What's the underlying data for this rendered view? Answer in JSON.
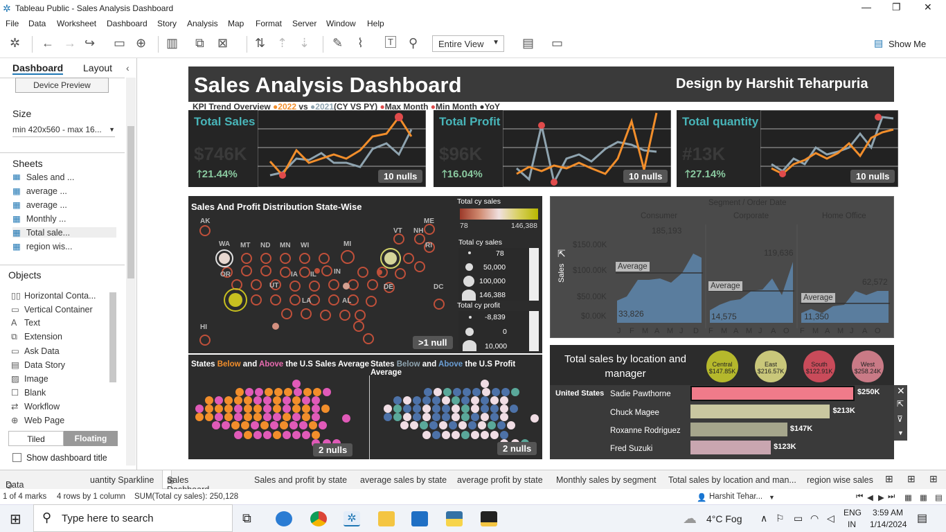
{
  "window": {
    "title": "Tableau Public - Sales Analysis Dashboard"
  },
  "menu": [
    "File",
    "Data",
    "Worksheet",
    "Dashboard",
    "Story",
    "Analysis",
    "Map",
    "Format",
    "Server",
    "Window",
    "Help"
  ],
  "toolbar": {
    "view_select": "Entire View",
    "show_me": "Show Me"
  },
  "left_panel": {
    "tabs": [
      "Dashboard",
      "Layout"
    ],
    "device_preview": "Device Preview",
    "size_label": "Size",
    "size_value": "min 420x560 - max 16...",
    "sheets_label": "Sheets",
    "sheets": [
      "Sales and ...",
      "average ...",
      "average ...",
      "Monthly ...",
      "Total sale...",
      "region wis..."
    ],
    "objects_label": "Objects",
    "objects": [
      "Horizontal Conta...",
      "Vertical Container",
      "Text",
      "Extension",
      "Ask Data",
      "Data Story",
      "Image",
      "Blank",
      "Workflow",
      "Web Page"
    ],
    "tiled": "Tiled",
    "floating": "Floating",
    "show_title": "Show dashboard title"
  },
  "dashboard": {
    "title": "Sales Analysis Dashboard",
    "designer": "Design by Harshit Teharpuria",
    "legend_line": {
      "p1": "KPI Trend Overview ",
      "dot": "●",
      "cy": "2022",
      "vs": "vs",
      "py": "2021",
      "cyvspy": "(CY VS PY)",
      "max": "Max Month",
      "min": "Min Month",
      "yoy": "YoY"
    },
    "kpis": [
      {
        "title": "Total Sales",
        "value": "$746K",
        "growth": "🡑21.44%",
        "nulls": "10 nulls"
      },
      {
        "title": "Total Profit",
        "value": "$96K",
        "growth": "🡑16.04%",
        "nulls": "10 nulls"
      },
      {
        "title": "Total quantity",
        "value": "#13K",
        "growth": "🡑27.14%",
        "nulls": "10 nulls"
      }
    ],
    "map": {
      "title": "Sales And Profit Distribution State-Wise",
      "states": [
        "AK",
        "ME",
        "VT",
        "NH",
        "WA",
        "MT",
        "ND",
        "MN",
        "WI",
        "MI",
        "RI",
        "OR",
        "IA",
        "IL",
        "IN",
        "DE",
        "UT",
        "LA",
        "AL",
        "DC",
        "HI"
      ],
      "null_badge": ">1 null",
      "legend": {
        "sales_title": "Total cy sales",
        "sales_min": "78",
        "sales_max": "146,388",
        "size_title": "Total cy sales",
        "sizes": [
          "78",
          "50,000",
          "100,000",
          "146,388"
        ],
        "profit_title": "Total cy profit",
        "profit_sizes": [
          "-8,839",
          "0",
          "10,000"
        ]
      }
    },
    "segment": {
      "header": "Segment / Order Date",
      "segments": [
        "Consumer",
        "Corporate",
        "Home Office"
      ],
      "y_label": "Sales",
      "y_ticks": [
        "$150.00K",
        "$100.00K",
        "$50.00K",
        "$0.00K"
      ],
      "peak_labels": [
        "185,193",
        "119,636",
        "62,572"
      ],
      "low_labels": [
        "33,826",
        "14,575",
        "11,350"
      ],
      "average_label": "Average",
      "months": [
        "J",
        "F",
        "M",
        "A",
        "M",
        "J",
        "J",
        "A",
        "S",
        "O",
        "N",
        "D"
      ]
    },
    "location": {
      "title": "Total sales by location and manager",
      "regions": [
        {
          "name": "Central",
          "value": "$147.85K",
          "color": "#b5b82c"
        },
        {
          "name": "East",
          "value": "$216.57K",
          "color": "#c9c77a"
        },
        {
          "name": "South",
          "value": "$122.91K",
          "color": "#c94b5a"
        },
        {
          "name": "West",
          "value": "$258.24K",
          "color": "#c97a86"
        }
      ],
      "country": "United States",
      "managers": [
        {
          "name": "Sadie Pawthorne",
          "value": "$250K",
          "pct": 1.0,
          "color": "#f07b8a"
        },
        {
          "name": "Chuck Magee",
          "value": "$213K",
          "pct": 0.85,
          "color": "#c9c7a0"
        },
        {
          "name": "Roxanne Rodriguez",
          "value": "$147K",
          "pct": 0.59,
          "color": "#a6a68c"
        },
        {
          "name": "Fred Suzuki",
          "value": "$123K",
          "pct": 0.49,
          "color": "#c9a6b0"
        }
      ]
    },
    "below_above": {
      "sales": {
        "p1": "States ",
        "below": "Below",
        "and": " and ",
        "above": "Above",
        "rest": " the U.S Sales Average",
        "nulls": "2 nulls"
      },
      "profit": {
        "p1": "States ",
        "below": "Below",
        "and": " and ",
        "above": "Above",
        "rest": " the U.S Profit Average",
        "nulls": "2 nulls"
      }
    }
  },
  "tabs": [
    "Data Source",
    "uantity Sparkline",
    "Sales Dashboard",
    "Sales and profit by state",
    "average sales by state",
    "average profit by state",
    "Monthly sales by segment",
    "Total sales by location and man...",
    "region wise sales"
  ],
  "status": {
    "marks": "1 of 4 marks",
    "rows": "4 rows by 1 column",
    "sum": "SUM(Total cy sales): 250,128",
    "user": "Harshit Tehar..."
  },
  "taskbar": {
    "search": "Type here to search",
    "weather": "4°C  Fog",
    "lang": "ENG",
    "lang2": "IN",
    "time": "3:59 AM",
    "date": "1/14/2024"
  },
  "colors": {
    "cy": "#f28e2b",
    "py": "#8fa4b0",
    "max": "#e04b4b",
    "kpi_title": "#48b5b9"
  }
}
